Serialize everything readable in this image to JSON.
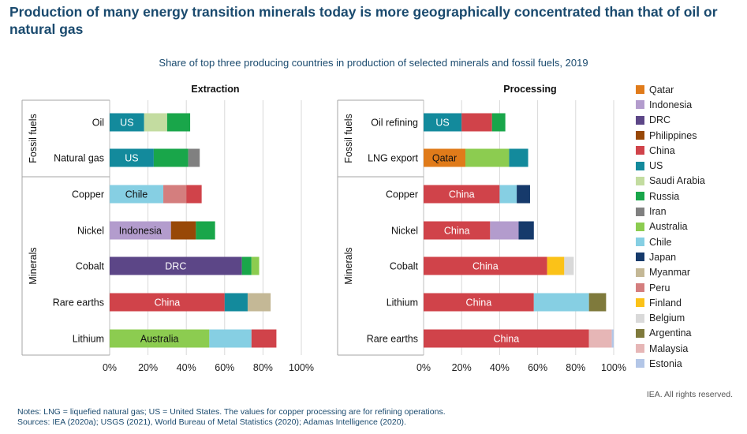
{
  "header": {
    "title": "Production of many energy transition minerals today is more geographically concentrated than that of oil or natural gas",
    "subtitle": "Share of top three producing countries in production of selected minerals and fossil fuels, 2019"
  },
  "colors": {
    "Qatar": "#e07b1a",
    "Indonesia": "#b39ccd",
    "DRC": "#5c4687",
    "Philippines": "#984807",
    "China": "#d0434a",
    "US": "#138a9c",
    "Saudi Arabia": "#c3dca0",
    "Russia": "#19a64a",
    "Iran": "#808080",
    "Australia": "#8ccc50",
    "Chile": "#86cfe3",
    "Japan": "#163a6b",
    "Myanmar": "#c4b896",
    "Peru": "#d47e7e",
    "Finland": "#fbc218",
    "Belgium": "#d9d9d9",
    "Argentina": "#7f7a3c",
    "Malaysia": "#e6b6b6",
    "Estonia": "#b3c6e7"
  },
  "legend": [
    "Qatar",
    "Indonesia",
    "DRC",
    "Philippines",
    "China",
    "US",
    "Saudi Arabia",
    "Russia",
    "Iran",
    "Australia",
    "Chile",
    "Japan",
    "Myanmar",
    "Peru",
    "Finland",
    "Belgium",
    "Argentina",
    "Malaysia",
    "Estonia"
  ],
  "chart_data": [
    {
      "type": "bar",
      "orientation": "horizontal",
      "stacked": true,
      "title": "Extraction",
      "xlim": [
        0,
        100
      ],
      "x_ticks": [
        "0%",
        "20%",
        "40%",
        "60%",
        "80%",
        "100%"
      ],
      "groups": [
        {
          "label": "Fossil fuels",
          "rows": [
            "Oil",
            "Natural gas"
          ]
        },
        {
          "label": "Minerals",
          "rows": [
            "Copper",
            "Nickel",
            "Cobalt",
            "Rare earths",
            "Lithium"
          ]
        }
      ],
      "rows": [
        {
          "label": "Oil",
          "segments": [
            {
              "country": "US",
              "value": 18,
              "label": "US"
            },
            {
              "country": "Saudi Arabia",
              "value": 12
            },
            {
              "country": "Russia",
              "value": 12
            }
          ]
        },
        {
          "label": "Natural gas",
          "segments": [
            {
              "country": "US",
              "value": 23,
              "label": "US"
            },
            {
              "country": "Russia",
              "value": 18
            },
            {
              "country": "Iran",
              "value": 6
            }
          ]
        },
        {
          "label": "Copper",
          "segments": [
            {
              "country": "Chile",
              "value": 28,
              "label": "Chile"
            },
            {
              "country": "Peru",
              "value": 12
            },
            {
              "country": "China",
              "value": 8
            }
          ]
        },
        {
          "label": "Nickel",
          "segments": [
            {
              "country": "Indonesia",
              "value": 32,
              "label": "Indonesia"
            },
            {
              "country": "Philippines",
              "value": 13
            },
            {
              "country": "Russia",
              "value": 10
            }
          ]
        },
        {
          "label": "Cobalt",
          "segments": [
            {
              "country": "DRC",
              "value": 69,
              "label": "DRC"
            },
            {
              "country": "Russia",
              "value": 5
            },
            {
              "country": "Australia",
              "value": 4
            }
          ]
        },
        {
          "label": "Rare earths",
          "segments": [
            {
              "country": "China",
              "value": 60,
              "label": "China"
            },
            {
              "country": "US",
              "value": 12
            },
            {
              "country": "Myanmar",
              "value": 12
            }
          ]
        },
        {
          "label": "Lithium",
          "segments": [
            {
              "country": "Australia",
              "value": 52,
              "label": "Australia"
            },
            {
              "country": "Chile",
              "value": 22
            },
            {
              "country": "China",
              "value": 13
            }
          ]
        }
      ]
    },
    {
      "type": "bar",
      "orientation": "horizontal",
      "stacked": true,
      "title": "Processing",
      "xlim": [
        0,
        100
      ],
      "x_ticks": [
        "0%",
        "20%",
        "40%",
        "60%",
        "80%",
        "100%"
      ],
      "groups": [
        {
          "label": "Fossil fuels",
          "rows": [
            "Oil refining",
            "LNG export"
          ]
        },
        {
          "label": "Minerals",
          "rows": [
            "Copper",
            "Nickel",
            "Cobalt",
            "Lithium",
            "Rare earths"
          ]
        }
      ],
      "rows": [
        {
          "label": "Oil refining",
          "segments": [
            {
              "country": "US",
              "value": 20,
              "label": "US"
            },
            {
              "country": "China",
              "value": 16
            },
            {
              "country": "Russia",
              "value": 7
            }
          ]
        },
        {
          "label": "LNG export",
          "segments": [
            {
              "country": "Qatar",
              "value": 22,
              "label": "Qatar"
            },
            {
              "country": "Australia",
              "value": 23
            },
            {
              "country": "US",
              "value": 10
            }
          ]
        },
        {
          "label": "Copper",
          "segments": [
            {
              "country": "China",
              "value": 40,
              "label": "China"
            },
            {
              "country": "Chile",
              "value": 9
            },
            {
              "country": "Japan",
              "value": 7
            }
          ]
        },
        {
          "label": "Nickel",
          "segments": [
            {
              "country": "China",
              "value": 35,
              "label": "China"
            },
            {
              "country": "Indonesia",
              "value": 15
            },
            {
              "country": "Japan",
              "value": 8
            }
          ]
        },
        {
          "label": "Cobalt",
          "segments": [
            {
              "country": "China",
              "value": 65,
              "label": "China"
            },
            {
              "country": "Finland",
              "value": 9
            },
            {
              "country": "Belgium",
              "value": 5
            }
          ]
        },
        {
          "label": "Lithium",
          "segments": [
            {
              "country": "China",
              "value": 58,
              "label": "China"
            },
            {
              "country": "Chile",
              "value": 29
            },
            {
              "country": "Argentina",
              "value": 9
            }
          ]
        },
        {
          "label": "Rare earths",
          "segments": [
            {
              "country": "China",
              "value": 87,
              "label": "China"
            },
            {
              "country": "Malaysia",
              "value": 12
            },
            {
              "country": "Estonia",
              "value": 1
            }
          ]
        }
      ]
    }
  ],
  "footer": {
    "rights": "IEA. All rights reserved.",
    "notes": "Notes: LNG = liquefied natural gas; US = United States. The values for copper processing are for refining operations.",
    "sources": "Sources: IEA (2020a); USGS (2021), World Bureau of Metal Statistics (2020); Adamas Intelligence (2020)."
  }
}
